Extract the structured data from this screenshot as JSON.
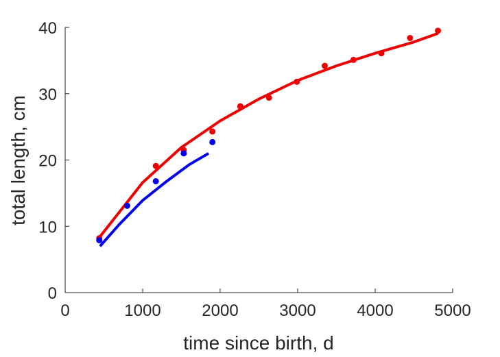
{
  "chart_data": {
    "type": "scatter",
    "title": "",
    "xlabel": "time since birth, d",
    "ylabel": "total length, cm",
    "xlim": [
      0,
      5000
    ],
    "ylim": [
      0,
      40
    ],
    "xticks": [
      0,
      1000,
      2000,
      3000,
      4000,
      5000
    ],
    "yticks": [
      0,
      10,
      20,
      30,
      40
    ],
    "grid": false,
    "legend": "none",
    "series": [
      {
        "color": "#ee0000",
        "points": [
          [
            440,
            8.2
          ],
          [
            800,
            13.1
          ],
          [
            1170,
            19.1
          ],
          [
            1530,
            21.5
          ],
          [
            1900,
            24.3
          ],
          [
            2260,
            28.1
          ],
          [
            2630,
            29.4
          ],
          [
            2990,
            31.8
          ],
          [
            3350,
            34.2
          ],
          [
            3720,
            35.1
          ],
          [
            4080,
            36.1
          ],
          [
            4450,
            38.4
          ],
          [
            4810,
            39.5
          ]
        ],
        "fit": [
          [
            440,
            8.3
          ],
          [
            1000,
            16.6
          ],
          [
            1500,
            21.9
          ],
          [
            2000,
            25.9
          ],
          [
            2500,
            29.2
          ],
          [
            3000,
            32.0
          ],
          [
            3500,
            34.2
          ],
          [
            4000,
            36.1
          ],
          [
            4500,
            37.8
          ],
          [
            4810,
            39.1
          ]
        ]
      },
      {
        "color": "#0000ee",
        "points": [
          [
            440,
            7.9
          ],
          [
            800,
            13.1
          ],
          [
            1170,
            16.8
          ],
          [
            1530,
            21.0
          ],
          [
            1900,
            22.7
          ]
        ],
        "fit": [
          [
            450,
            7.0
          ],
          [
            700,
            10.3
          ],
          [
            1000,
            13.9
          ],
          [
            1300,
            16.7
          ],
          [
            1600,
            19.3
          ],
          [
            1850,
            21.0
          ]
        ]
      }
    ]
  }
}
